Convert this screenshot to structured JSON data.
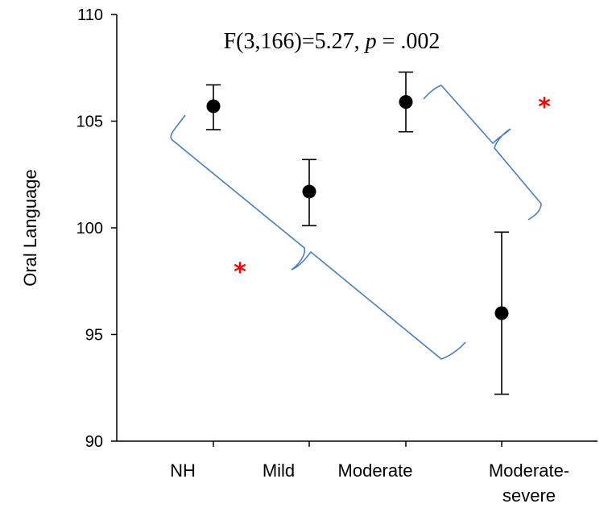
{
  "chart_data": {
    "type": "scatter",
    "title": "",
    "annotation": {
      "prefix": "F(3,166)=5.27, ",
      "p_symbol": "p",
      "suffix": " = .002"
    },
    "xlabel": "",
    "ylabel": "Oral Language",
    "ylim": [
      90,
      110
    ],
    "yticks": [
      90,
      95,
      100,
      105,
      110
    ],
    "categories": [
      {
        "lines": [
          "NH"
        ]
      },
      {
        "lines": [
          "Mild"
        ]
      },
      {
        "lines": [
          "Moderate"
        ]
      },
      {
        "lines": [
          "Moderate-",
          "severe"
        ]
      }
    ],
    "series": [
      {
        "means": [
          105.7,
          101.7,
          105.9,
          96.0
        ],
        "error_low": [
          104.6,
          100.1,
          104.5,
          92.2
        ],
        "error_high": [
          106.7,
          103.2,
          107.3,
          99.8
        ]
      }
    ],
    "significance_brackets": [
      {
        "from_category": 0,
        "to_category": 3,
        "marker": "*"
      },
      {
        "from_category": 2,
        "to_category": 3,
        "marker": "*"
      }
    ],
    "colors": {
      "points": "#000000",
      "bracket": "#4a7ebb",
      "significance": "#ff0000"
    }
  }
}
